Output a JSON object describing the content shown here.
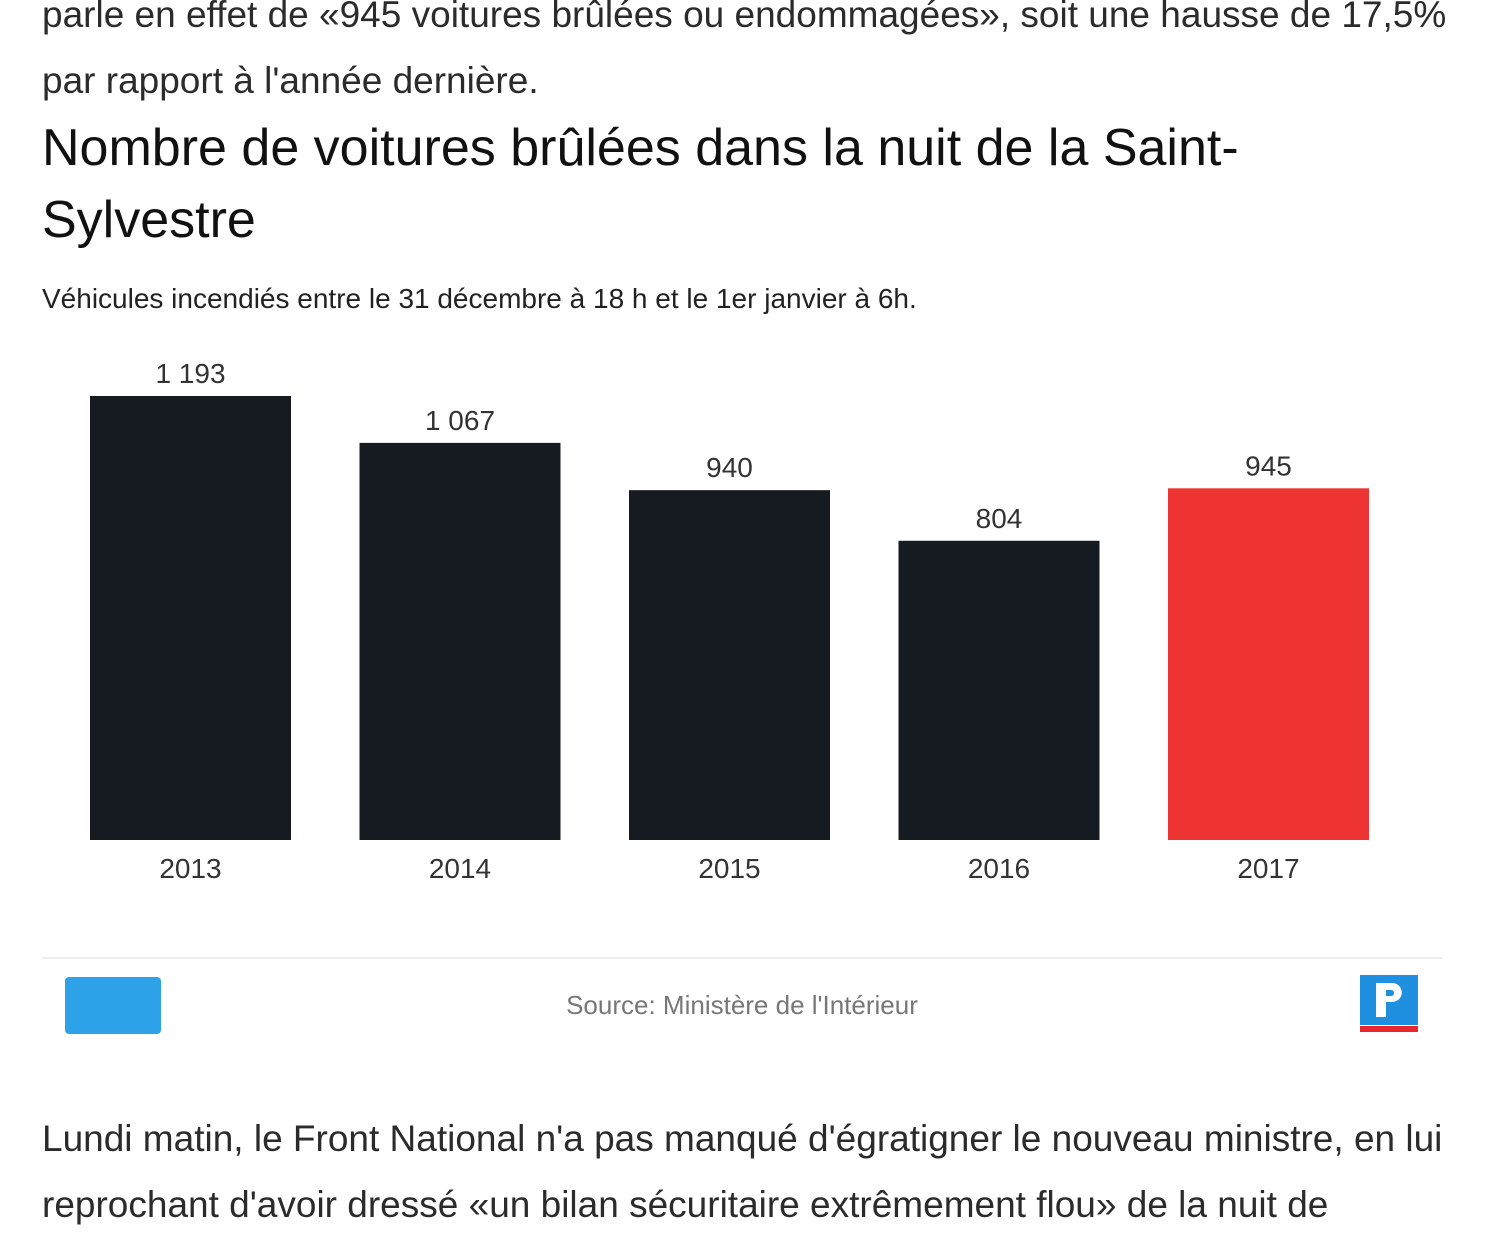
{
  "article": {
    "paragraph_before": "parle en effet de «945 voitures brûlées ou endommagées», soit une hausse de 17,5% par rapport à l'année dernière.",
    "paragraph_after": "Lundi matin, le Front National n'a pas manqué d'égratigner le nouveau ministre, en lui reprochant d'avoir dressé «un bilan sécuritaire extrêmement flou» de la nuit de"
  },
  "chart_data": {
    "type": "bar",
    "title": "Nombre de voitures brûlées dans la nuit de la Saint-Sylvestre",
    "subtitle": "Véhicules incendiés entre le 31 décembre à 18 h et le 1er janvier à 6h.",
    "categories": [
      "2013",
      "2014",
      "2015",
      "2016",
      "2017"
    ],
    "values": [
      1193,
      1067,
      940,
      804,
      945
    ],
    "value_labels": [
      "1 193",
      "1 067",
      "940",
      "804",
      "945"
    ],
    "highlight_index": 4,
    "ylim": [
      0,
      1193
    ],
    "grid": false,
    "source": "Source: Ministère de l'Intérieur"
  },
  "colors": {
    "bar": "#161b22",
    "highlight": "#ee3333",
    "share_button": "#2ea2e8",
    "logo_blue": "#1f8fe0",
    "logo_red": "#e8262b"
  },
  "icons": {
    "share": "share-button-blank",
    "logo": "le-parisien-p-logo"
  }
}
